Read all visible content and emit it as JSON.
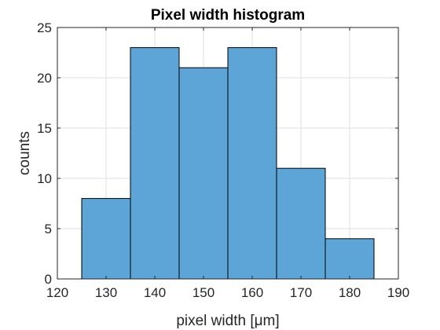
{
  "chart_data": {
    "type": "bar",
    "title": "Pixel width histogram",
    "xlabel": "pixel width [μm]",
    "ylabel": "counts",
    "xlim": [
      120,
      190
    ],
    "ylim": [
      0,
      25
    ],
    "xticks": [
      120,
      130,
      140,
      150,
      160,
      170,
      180,
      190
    ],
    "yticks": [
      0,
      5,
      10,
      15,
      20,
      25
    ],
    "bin_edges": [
      125,
      135,
      145,
      155,
      165,
      175,
      185
    ],
    "values": [
      8,
      23,
      21,
      23,
      11,
      4
    ],
    "grid": true,
    "bar_color": "#5DA5D7",
    "edge_color": "#000000"
  }
}
